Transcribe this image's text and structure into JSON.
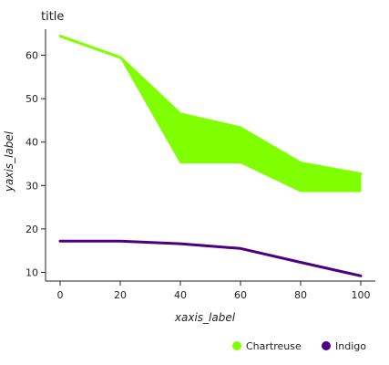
{
  "chart_data": {
    "type": "line",
    "title": "title",
    "xlabel": "xaxis_label",
    "ylabel": "yaxis_label",
    "xlim": [
      0,
      100
    ],
    "ylim": [
      8,
      66
    ],
    "xticks": [
      0,
      20,
      40,
      60,
      80,
      100
    ],
    "yticks": [
      10,
      20,
      30,
      40,
      50,
      60
    ],
    "grid": false,
    "legend_position": "bottom",
    "series": [
      {
        "name": "Chartreuse",
        "color": "#7fff00",
        "x": [
          0,
          20,
          40,
          60,
          80,
          100
        ],
        "y": [
          64.4,
          59.5,
          46.5,
          43.3,
          35.2,
          32.7
        ],
        "lower": [
          64.4,
          59.5,
          35.2,
          35.2,
          28.6,
          28.6
        ],
        "upper": [
          64.4,
          59.5,
          46.5,
          43.3,
          35.2,
          32.7
        ]
      },
      {
        "name": "Indigo",
        "color": "#4b0082",
        "x": [
          0,
          20,
          40,
          60,
          80,
          100
        ],
        "y": [
          17.2,
          17.2,
          16.6,
          15.5,
          12.3,
          9.2
        ],
        "lower": [
          17.2,
          17.2,
          16.6,
          15.5,
          12.3,
          9.2
        ],
        "upper": [
          17.2,
          17.2,
          16.6,
          15.5,
          12.3,
          9.2
        ]
      }
    ]
  }
}
